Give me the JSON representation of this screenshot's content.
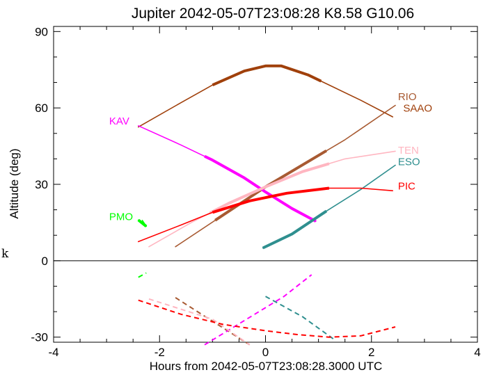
{
  "chart_data": {
    "type": "line",
    "title": "Jupiter 2042-05-07T23:08:28  K8.58  G10.06",
    "xlabel": "Hours from 2042-05-07T23:08:28.3000 UTC",
    "ylabel": "Altitude (deg)",
    "stray_text": "k",
    "xlim": [
      -4,
      4
    ],
    "ylim": [
      -32,
      92
    ],
    "xticks": [
      -4,
      -2,
      0,
      2,
      4
    ],
    "xtick_labels": [
      "-4",
      "-2",
      "0",
      "2",
      "4"
    ],
    "yticks": [
      -30,
      0,
      30,
      60,
      90
    ],
    "ytick_labels": [
      "-30",
      "0",
      "30",
      "60",
      "90"
    ],
    "grid": false,
    "zero_line": true,
    "series": [
      {
        "name": "SAAO",
        "color": "#a0400b",
        "x": [
          -2.4,
          -1.6,
          -1.0,
          -0.4,
          0.0,
          0.3,
          0.8,
          1.3,
          1.8,
          2.4
        ],
        "y": [
          52.5,
          62,
          69,
          74.5,
          76.5,
          76.5,
          73,
          68,
          63,
          56.5
        ],
        "thick_range": [
          -1.0,
          1.05
        ],
        "label_xy": [
          2.6,
          58.5
        ]
      },
      {
        "name": "RIO",
        "color": "#a85a32",
        "x": [
          -1.7,
          0.0,
          1.5,
          2.45
        ],
        "y": [
          5.5,
          29,
          47.5,
          61
        ],
        "thick_range": [
          -0.95,
          1.15
        ],
        "below": {
          "x": [
            -1.7,
            -0.3
          ],
          "y": [
            -14.5,
            -33
          ]
        },
        "label_xy": [
          2.5,
          63
        ]
      },
      {
        "name": "KAV",
        "color": "#ff00ff",
        "x": [
          -2.4,
          -1.6,
          -1.0,
          -0.4,
          0.0,
          0.5,
          0.95
        ],
        "y": [
          53,
          45.5,
          39.5,
          32.5,
          27,
          20.5,
          15.5
        ],
        "thick_range": [
          -1.15,
          0.95
        ],
        "below": {
          "x": [
            -1.15,
            0.35,
            0.87
          ],
          "y": [
            -33,
            -14,
            -5.5
          ]
        },
        "label_xy": [
          -2.95,
          53.5
        ]
      },
      {
        "name": "TEN",
        "color": "#ffb6c1",
        "x": [
          -2.2,
          -1.4,
          -0.7,
          0.0,
          0.7,
          1.5,
          2.45
        ],
        "y": [
          5.5,
          15,
          22.5,
          29,
          35,
          40,
          43
        ],
        "thick_range": [
          -1.05,
          1.2
        ],
        "below": {
          "x": [
            -2.2,
            -1.0,
            -0.3
          ],
          "y": [
            -15,
            -23,
            -33
          ]
        },
        "label_xy": [
          2.5,
          42
        ]
      },
      {
        "name": "ESO",
        "color": "#2f8f8f",
        "x": [
          -0.05,
          0.5,
          1.15,
          1.8,
          2.45
        ],
        "y": [
          5,
          10.5,
          19.5,
          28,
          37.5
        ],
        "thick_range": [
          -0.05,
          1.15
        ],
        "below": {
          "x": [
            0.0,
            0.7,
            1.3
          ],
          "y": [
            -14,
            -22,
            -31
          ]
        },
        "label_xy": [
          2.5,
          37.5
        ]
      },
      {
        "name": "PIC",
        "color": "#ff0000",
        "x": [
          -2.4,
          -1.6,
          -1.0,
          -0.3,
          0.4,
          1.2,
          1.8,
          2.4
        ],
        "y": [
          7.5,
          14,
          19,
          23.5,
          26.5,
          28.5,
          28.5,
          27.5
        ],
        "thick_range": [
          -1.0,
          1.2
        ],
        "below": {
          "x": [
            -2.4,
            -1.6,
            -0.8,
            0.0,
            0.6,
            1.2,
            1.8,
            2.45
          ],
          "y": [
            -15.5,
            -21,
            -25,
            -27.5,
            -29,
            -30,
            -29.5,
            -26
          ]
        },
        "label_xy": [
          2.5,
          28
        ]
      },
      {
        "name": "PMO",
        "color": "#00ff00",
        "x": [
          -2.4,
          -2.25
        ],
        "y": [
          16,
          13.5
        ],
        "thick_range": [
          -2.4,
          -2.25
        ],
        "below": {
          "x": [
            -2.4,
            -2.25
          ],
          "y": [
            -6.5,
            -4.8
          ]
        },
        "label_xy": [
          -2.95,
          16
        ]
      }
    ]
  }
}
